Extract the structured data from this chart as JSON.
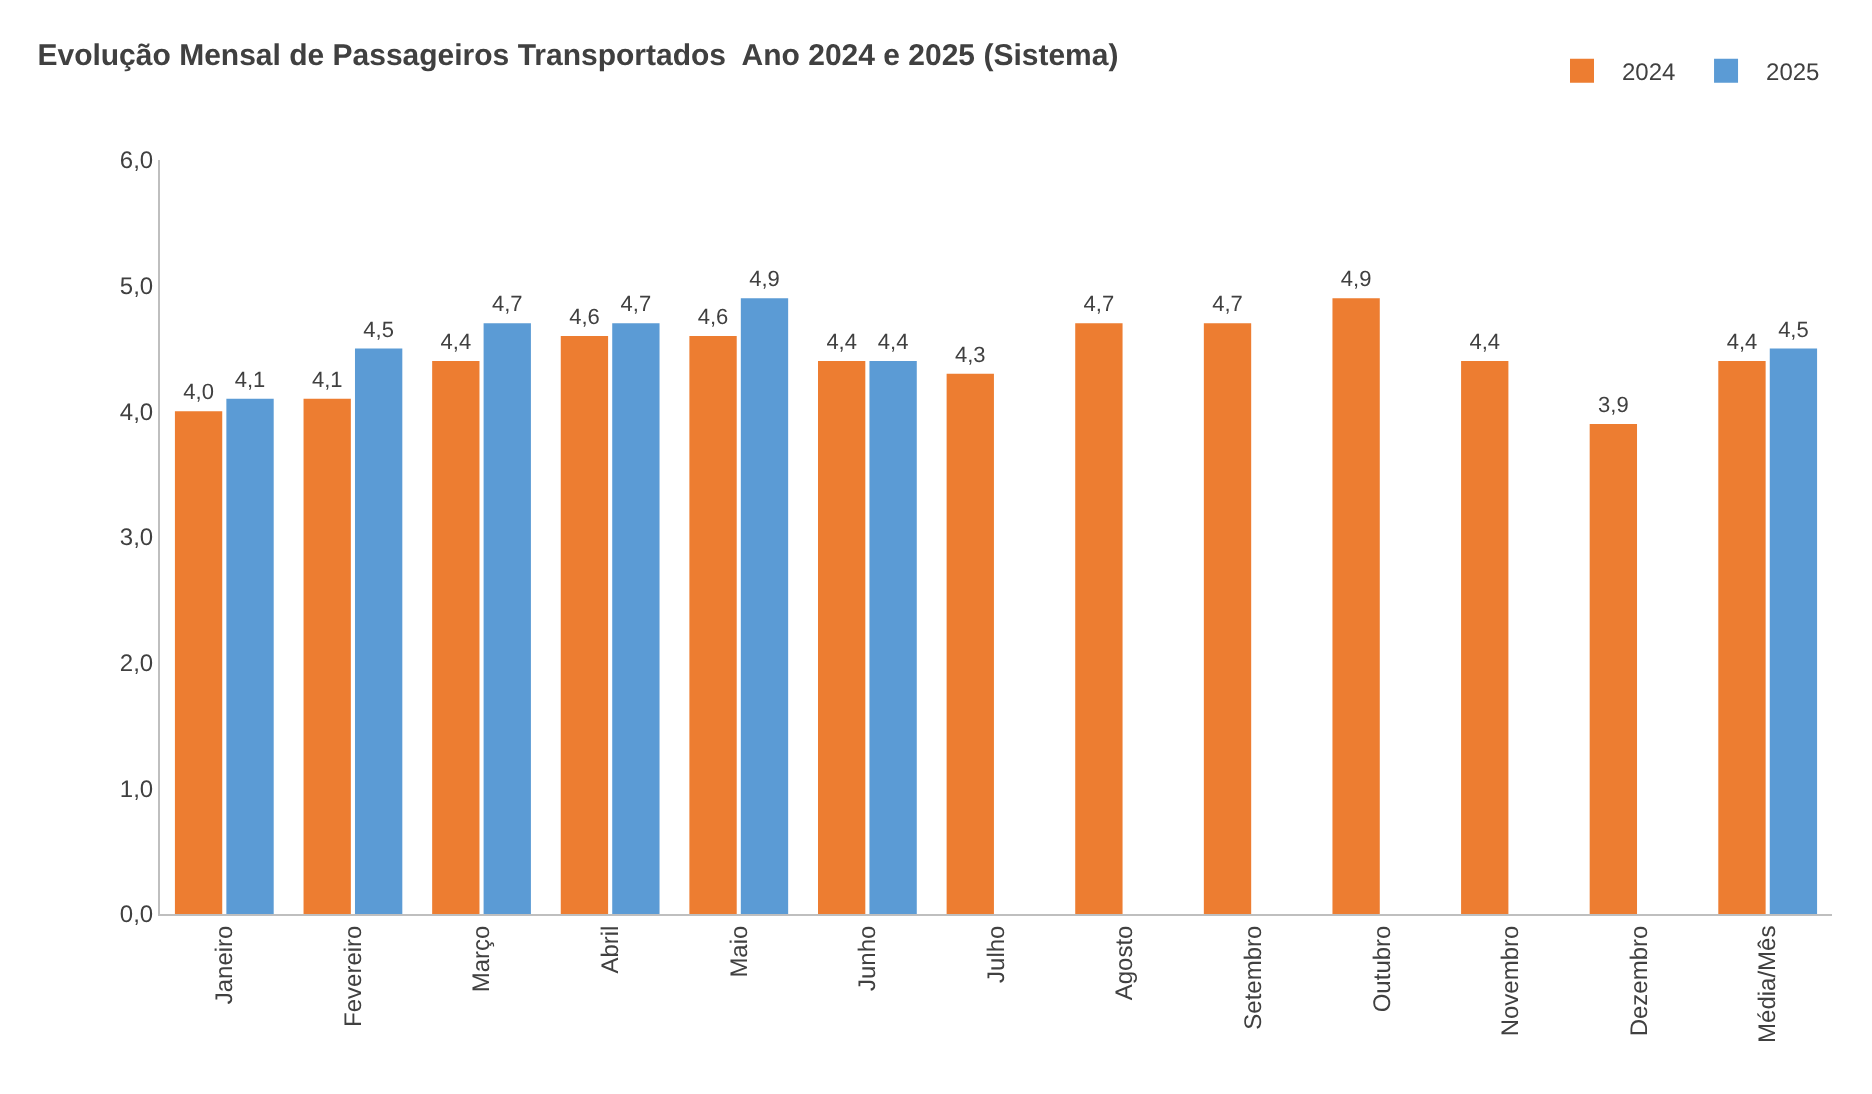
{
  "chart_data": {
    "type": "bar",
    "title": "Evolução Mensal de Passageiros Transportados  Ano 2024 e 2025 (Sistema)",
    "categories": [
      "Janeiro",
      "Fevereiro",
      "Março",
      "Abril",
      "Maio",
      "Junho",
      "Julho",
      "Agosto",
      "Setembro",
      "Outubro",
      "Novembro",
      "Dezembro",
      "Média/Mês"
    ],
    "series": [
      {
        "name": "2024",
        "color": "#ed7d31",
        "values": [
          4.0,
          4.1,
          4.4,
          4.6,
          4.6,
          4.4,
          4.3,
          4.7,
          4.7,
          4.9,
          4.4,
          3.9,
          4.4
        ],
        "value_labels": [
          "4,0",
          "4,1",
          "4,4",
          "4,6",
          "4,6",
          "4,4",
          "4,3",
          "4,7",
          "4,7",
          "4,9",
          "4,4",
          "3,9",
          "4,4"
        ]
      },
      {
        "name": "2025",
        "color": "#5b9bd5",
        "values": [
          4.1,
          4.5,
          4.7,
          4.7,
          4.9,
          4.4,
          null,
          null,
          null,
          null,
          null,
          null,
          4.5
        ],
        "value_labels": [
          "4,1",
          "4,5",
          "4,7",
          "4,7",
          "4,9",
          "4,4",
          null,
          null,
          null,
          null,
          null,
          null,
          "4,5"
        ]
      }
    ],
    "ylim": [
      0,
      6
    ],
    "yticks": [
      {
        "value": 0,
        "label": "0,0"
      },
      {
        "value": 1,
        "label": "1,0"
      },
      {
        "value": 2,
        "label": "2,0"
      },
      {
        "value": 3,
        "label": "3,0"
      },
      {
        "value": 4,
        "label": "4,0"
      },
      {
        "value": 5,
        "label": "5,0"
      },
      {
        "value": 6,
        "label": "6,0"
      }
    ],
    "grid": false,
    "legend": "top right"
  }
}
